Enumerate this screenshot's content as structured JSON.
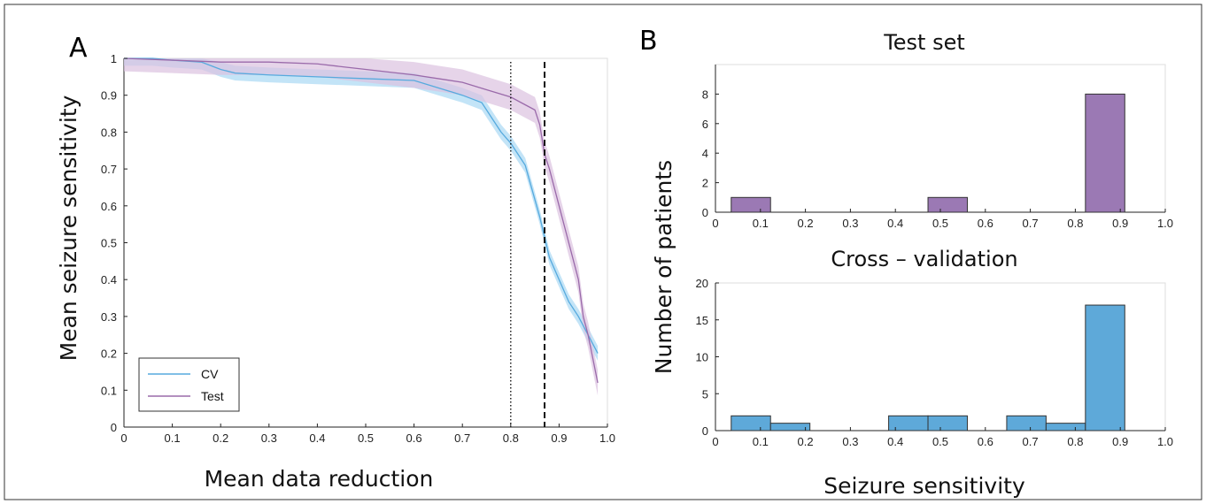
{
  "colors": {
    "cv": "#56aade",
    "cv_band": "#a9d8f3",
    "test": "#9a6aaa",
    "test_band": "#dcc2e0",
    "hist_test": "#9b79b4",
    "hist_cv": "#5ea9d9"
  },
  "panel_a_letter": "A",
  "panel_b_letter": "B",
  "chart_data": [
    {
      "type": "line",
      "panel": "A",
      "xlabel": "Mean data reduction",
      "ylabel": "Mean seizure sensitivity",
      "xlim": [
        0,
        1
      ],
      "ylim": [
        0,
        1
      ],
      "xticks": [
        "0",
        "0.1",
        "0.2",
        "0.3",
        "0.4",
        "0.5",
        "0.6",
        "0.7",
        "0.8",
        "0.9",
        "1.0"
      ],
      "yticks": [
        "0",
        "0.1",
        "0.2",
        "0.3",
        "0.4",
        "0.5",
        "0.6",
        "0.7",
        "0.8",
        "0.9",
        "1"
      ],
      "legend_position": "bottom-left",
      "vlines": [
        {
          "x": 0.8,
          "style": "dotted"
        },
        {
          "x": 0.87,
          "style": "dashed"
        }
      ],
      "series": [
        {
          "name": "CV",
          "x": [
            0,
            0.06,
            0.1,
            0.16,
            0.2,
            0.23,
            0.3,
            0.4,
            0.5,
            0.6,
            0.65,
            0.7,
            0.74,
            0.76,
            0.78,
            0.8,
            0.83,
            0.86,
            0.88,
            0.9,
            0.92,
            0.94,
            0.96,
            0.98
          ],
          "y": [
            1.0,
            1.0,
            0.995,
            0.99,
            0.97,
            0.96,
            0.955,
            0.95,
            0.945,
            0.94,
            0.92,
            0.9,
            0.88,
            0.84,
            0.8,
            0.77,
            0.71,
            0.57,
            0.46,
            0.4,
            0.34,
            0.3,
            0.25,
            0.2
          ],
          "band": 0.02
        },
        {
          "name": "Test",
          "x": [
            0,
            0.1,
            0.2,
            0.3,
            0.4,
            0.5,
            0.6,
            0.65,
            0.7,
            0.75,
            0.8,
            0.85,
            0.86,
            0.87,
            0.88,
            0.9,
            0.92,
            0.93,
            0.94,
            0.95,
            0.96,
            0.98
          ],
          "y": [
            1.0,
            0.995,
            0.99,
            0.99,
            0.985,
            0.97,
            0.955,
            0.945,
            0.935,
            0.915,
            0.895,
            0.86,
            0.82,
            0.74,
            0.7,
            0.6,
            0.5,
            0.45,
            0.4,
            0.3,
            0.25,
            0.12
          ],
          "band": 0.035
        }
      ]
    },
    {
      "type": "bar",
      "panel": "B",
      "title": "Test set",
      "xlim": [
        0,
        1
      ],
      "ylim": [
        0,
        10
      ],
      "xticks": [
        "0",
        "0.1",
        "0.2",
        "0.3",
        "0.4",
        "0.5",
        "0.6",
        "0.7",
        "0.8",
        "0.9",
        "1.0"
      ],
      "yticks": [
        "0",
        "2",
        "4",
        "6",
        "8"
      ],
      "bin_start": 0.035,
      "bin_width": 0.0875,
      "values": [
        1,
        0,
        0,
        0,
        0,
        1,
        0,
        0,
        0,
        8
      ]
    },
    {
      "type": "bar",
      "panel": "B",
      "title": "Cross – validation",
      "xlabel": "Seizure sensitivity",
      "ylabel": "Number of patients",
      "xlim": [
        0,
        1
      ],
      "ylim": [
        0,
        20
      ],
      "xticks": [
        "0",
        "0.1",
        "0.2",
        "0.3",
        "0.4",
        "0.5",
        "0.6",
        "0.7",
        "0.8",
        "0.9",
        "1.0"
      ],
      "yticks": [
        "0",
        "5",
        "10",
        "15",
        "20"
      ],
      "bin_start": 0.035,
      "bin_width": 0.0875,
      "values": [
        2,
        1,
        0,
        0,
        2,
        2,
        0,
        2,
        1,
        17
      ]
    }
  ]
}
